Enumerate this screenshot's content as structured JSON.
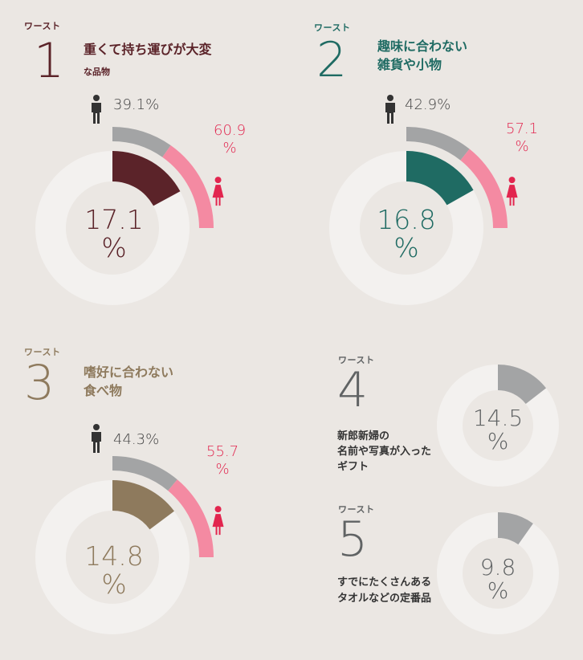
{
  "worst_label": "ワースト",
  "colors": {
    "background": "#ebe7e3",
    "ring_empty": "#f3f1ef",
    "male_arc": "#a3a4a5",
    "female_arc": "#f48aa2",
    "female_text": "#e2264f",
    "male_icon": "#333333",
    "female_icon": "#e2264f"
  },
  "items": [
    {
      "rank": "1",
      "title_lines": [
        "重くて持ち運びが大変"
      ],
      "subtitle": "な品物",
      "color": "#5b2329",
      "value_text": "17.1",
      "percent_sign": "%",
      "male_text": "39.1%",
      "female_line1": "60.9",
      "female_line2": "%"
    },
    {
      "rank": "2",
      "title_lines": [
        "趣味に合わない",
        "雑貨や小物"
      ],
      "color": "#1f6b63",
      "value_text": "16.8",
      "percent_sign": "%",
      "male_text": "42.9%",
      "female_line1": "57.1",
      "female_line2": "%"
    },
    {
      "rank": "3",
      "title_lines": [
        "嗜好に合わない",
        "食べ物"
      ],
      "color": "#8e7a5d",
      "value_text": "14.8",
      "percent_sign": "%",
      "male_text": "44.3%",
      "female_line1": "55.7",
      "female_line2": "%"
    },
    {
      "rank": "4",
      "title_lines": [
        "新郎新婦の",
        "名前や写真が入った",
        "ギフト"
      ],
      "color": "#606364",
      "value_text": "14.5",
      "percent_sign": "%"
    },
    {
      "rank": "5",
      "title_lines": [
        "すでにたくさんある",
        "タオルなどの定番品"
      ],
      "color": "#606364",
      "value_text": "9.8",
      "percent_sign": "%"
    }
  ],
  "chart_data": [
    {
      "type": "pie",
      "categories": [
        "重くて持ち運びが大変な品物"
      ],
      "values": [
        17.1
      ],
      "gender_split": {
        "male": 39.1,
        "female": 60.9
      }
    },
    {
      "type": "pie",
      "categories": [
        "趣味に合わない雑貨や小物"
      ],
      "values": [
        16.8
      ],
      "gender_split": {
        "male": 42.9,
        "female": 57.1
      }
    },
    {
      "type": "pie",
      "categories": [
        "嗜好に合わない食べ物"
      ],
      "values": [
        14.8
      ],
      "gender_split": {
        "male": 44.3,
        "female": 55.7
      }
    },
    {
      "type": "pie",
      "categories": [
        "新郎新婦の名前や写真が入ったギフト"
      ],
      "values": [
        14.5
      ]
    },
    {
      "type": "pie",
      "categories": [
        "すでにたくさんあるタオルなどの定番品"
      ],
      "values": [
        9.8
      ]
    }
  ]
}
